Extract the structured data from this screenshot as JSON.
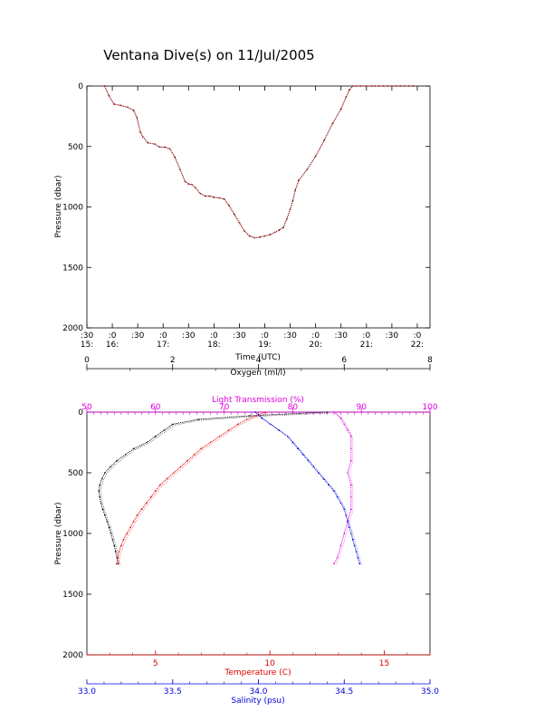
{
  "title": "Ventana Dive(s) on 11/Jul/2005",
  "colors": {
    "axis": "#000000",
    "trace": "#8b1a1a",
    "oxygen": "#000000",
    "light": "#e000e0",
    "temperature": "#e00000",
    "salinity": "#0000e0"
  },
  "chart_data": [
    {
      "type": "line",
      "title": "Ventana Dive(s) on 11/Jul/2005",
      "xlabel": "Time (UTC)",
      "ylabel": "Pressure (dbar)",
      "ylim": [
        2000,
        0
      ],
      "xlim": [
        "15:30",
        "22:15"
      ],
      "y_ticks": [
        "0",
        "500",
        "1000",
        "1500",
        "2000"
      ],
      "x_ticks": [
        {
          "minute": ":30",
          "hour": "15:"
        },
        {
          "minute": ":0",
          "hour": "16:"
        },
        {
          "minute": ":30",
          "hour": ""
        },
        {
          "minute": ":0",
          "hour": "17:"
        },
        {
          "minute": ":30",
          "hour": ""
        },
        {
          "minute": ":0",
          "hour": "18:"
        },
        {
          "minute": ":30",
          "hour": ""
        },
        {
          "minute": ":0",
          "hour": "19:"
        },
        {
          "minute": ":30",
          "hour": ""
        },
        {
          "minute": ":0",
          "hour": "20:"
        },
        {
          "minute": ":30",
          "hour": ""
        },
        {
          "minute": ":0",
          "hour": "21:"
        },
        {
          "minute": ":30",
          "hour": ""
        },
        {
          "minute": ":0",
          "hour": "22:"
        }
      ],
      "x_tick_times": [
        "15:30",
        "16:00",
        "16:30",
        "17:00",
        "17:30",
        "18:00",
        "18:30",
        "19:00",
        "19:30",
        "20:00",
        "20:30",
        "21:00",
        "21:30",
        "22:00"
      ],
      "grid": false,
      "series": [
        {
          "x": [
            "15:51",
            "15:56",
            "16:02",
            "16:10",
            "16:18",
            "16:25",
            "16:29",
            "16:33",
            "16:36",
            "16:42",
            "16:50",
            "16:56",
            "17:02",
            "17:08",
            "17:14",
            "17:20",
            "17:26",
            "17:30",
            "17:34",
            "17:38",
            "17:44",
            "17:50",
            "17:55",
            "18:00",
            "18:06",
            "18:12",
            "18:18",
            "18:24",
            "18:30",
            "18:36",
            "18:42",
            "18:48",
            "18:54",
            "19:00",
            "19:06",
            "19:12",
            "19:17",
            "19:22",
            "19:26",
            "19:30",
            "19:33",
            "19:36",
            "19:40",
            "19:50",
            "20:00",
            "20:10",
            "20:20",
            "20:30",
            "20:36",
            "20:40",
            "20:44",
            "20:48",
            "20:53",
            "21:00",
            "21:06",
            "21:10",
            "21:15",
            "21:20",
            "21:25",
            "21:30",
            "21:35",
            "21:40",
            "21:45",
            "21:50",
            "21:55"
          ],
          "values": [
            0,
            80,
            150,
            160,
            175,
            200,
            260,
            380,
            420,
            470,
            480,
            505,
            505,
            520,
            590,
            690,
            790,
            810,
            815,
            840,
            890,
            910,
            910,
            920,
            925,
            935,
            990,
            1060,
            1130,
            1200,
            1240,
            1255,
            1250,
            1240,
            1230,
            1210,
            1190,
            1170,
            1100,
            1020,
            950,
            860,
            780,
            690,
            580,
            450,
            310,
            190,
            90,
            30,
            0,
            0,
            0,
            0,
            0,
            0,
            0,
            0,
            0,
            0,
            0,
            0,
            0,
            0,
            0
          ]
        }
      ]
    },
    {
      "type": "scatter",
      "ylabel": "Pressure (dbar)",
      "ylim": [
        2000,
        0
      ],
      "y_ticks": [
        "0",
        "500",
        "1000",
        "1500",
        "2000"
      ],
      "grid": false,
      "axes": [
        {
          "label": "Oxygen (ml/l)",
          "position": "top",
          "range": [
            0,
            8
          ],
          "ticks": [
            "0",
            "2",
            "4",
            "6",
            "8"
          ]
        },
        {
          "label": "Light Transmission (%)",
          "position": "top",
          "range": [
            50,
            100
          ],
          "ticks": [
            "50",
            "60",
            "70",
            "80",
            "90",
            "100"
          ]
        },
        {
          "label": "Temperature (C)",
          "position": "bottom",
          "range": [
            2.0,
            17.0
          ],
          "ticks": [
            "5",
            "10",
            "15"
          ]
        },
        {
          "label": "Salinity (psu)",
          "position": "bottom",
          "range": [
            33.0,
            35.0
          ],
          "ticks": [
            "33.0",
            "33.5",
            "34.0",
            "34.5",
            "35.0"
          ]
        }
      ],
      "series": [
        {
          "name": "Oxygen",
          "axis": "Oxygen (ml/l)",
          "pressure": [
            0,
            30,
            60,
            100,
            150,
            200,
            250,
            300,
            350,
            400,
            450,
            500,
            550,
            600,
            650,
            700,
            750,
            800,
            850,
            900,
            950,
            1000,
            1050,
            1100,
            1150,
            1200,
            1250
          ],
          "values": [
            5.6,
            3.8,
            2.6,
            2.0,
            1.8,
            1.6,
            1.4,
            1.1,
            0.9,
            0.7,
            0.55,
            0.42,
            0.35,
            0.3,
            0.28,
            0.3,
            0.33,
            0.37,
            0.42,
            0.47,
            0.52,
            0.56,
            0.6,
            0.64,
            0.67,
            0.7,
            0.73
          ]
        },
        {
          "name": "Light Transmission",
          "axis": "Light Transmission (%)",
          "pressure": [
            0,
            50,
            100,
            150,
            200,
            300,
            400,
            500,
            600,
            700,
            800,
            900,
            1000,
            1100,
            1200,
            1250
          ],
          "values": [
            86,
            87,
            87.5,
            88,
            88.5,
            88.5,
            88.5,
            88,
            88.5,
            88.5,
            88.5,
            88,
            87.5,
            87,
            86.5,
            86
          ]
        },
        {
          "name": "Temperature",
          "axis": "Temperature (C)",
          "pressure": [
            0,
            30,
            60,
            100,
            150,
            200,
            250,
            300,
            350,
            400,
            450,
            500,
            550,
            600,
            650,
            700,
            750,
            800,
            850,
            900,
            950,
            1000,
            1050,
            1100,
            1150,
            1200,
            1250
          ],
          "values": [
            9.8,
            9.4,
            9.0,
            8.6,
            8.2,
            7.8,
            7.4,
            7.0,
            6.7,
            6.4,
            6.1,
            5.8,
            5.5,
            5.2,
            5.0,
            4.8,
            4.6,
            4.4,
            4.2,
            4.05,
            3.9,
            3.75,
            3.6,
            3.5,
            3.4,
            3.35,
            3.3
          ]
        },
        {
          "name": "Salinity",
          "axis": "Salinity (psu)",
          "pressure": [
            0,
            50,
            100,
            150,
            200,
            250,
            300,
            350,
            400,
            450,
            500,
            550,
            600,
            650,
            700,
            750,
            800,
            850,
            900,
            950,
            1000,
            1050,
            1100,
            1150,
            1200,
            1250
          ],
          "values": [
            33.98,
            34.02,
            34.07,
            34.12,
            34.17,
            34.2,
            34.23,
            34.26,
            34.29,
            34.32,
            34.35,
            34.38,
            34.41,
            34.44,
            34.46,
            34.48,
            34.5,
            34.51,
            34.52,
            34.53,
            34.54,
            34.55,
            34.56,
            34.57,
            34.58,
            34.59
          ]
        }
      ]
    }
  ]
}
